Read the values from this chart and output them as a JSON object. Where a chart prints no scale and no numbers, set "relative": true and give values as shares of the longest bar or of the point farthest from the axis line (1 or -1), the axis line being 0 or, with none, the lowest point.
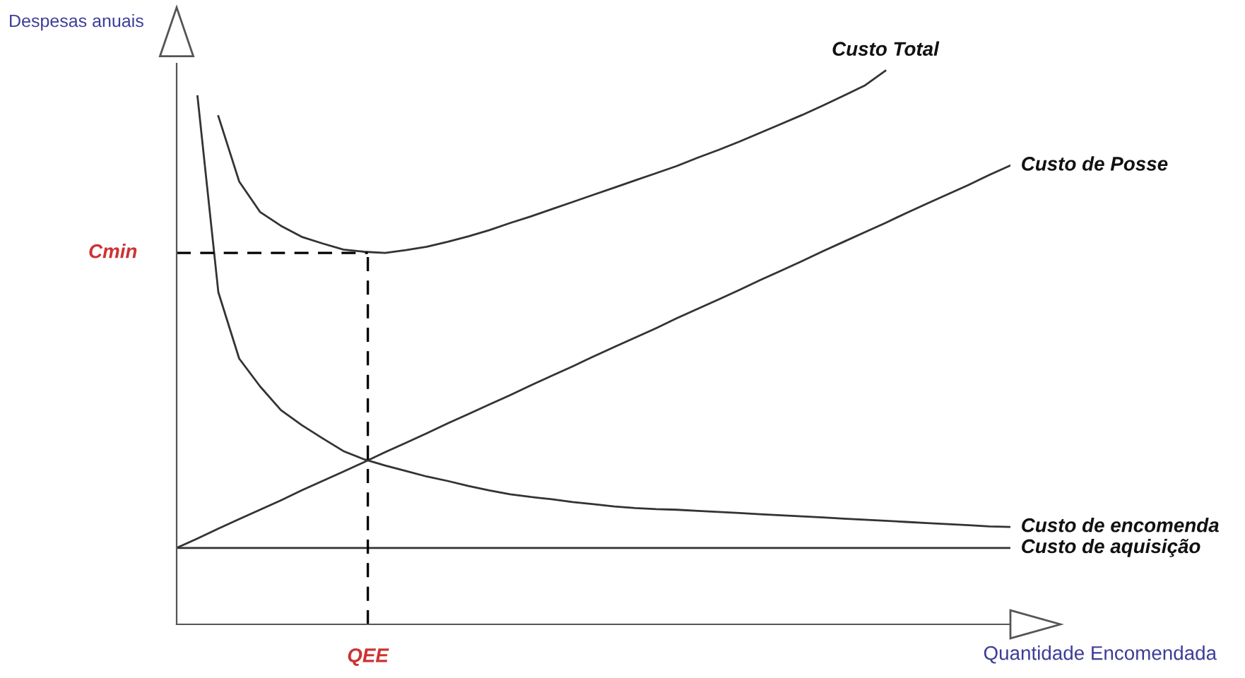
{
  "chart_data": {
    "type": "line",
    "relative": true,
    "xlabel": "Quantidade Encomendada",
    "ylabel": "Despesas anuais",
    "categories": [
      null,
      null,
      null,
      null,
      null,
      null,
      null,
      null,
      null,
      null,
      null,
      null,
      null,
      null,
      null,
      null,
      null,
      null,
      null,
      null,
      null,
      null,
      null,
      null,
      null,
      null,
      null,
      null,
      null,
      null,
      null,
      null,
      null,
      null,
      null,
      null,
      null,
      null,
      null,
      null,
      null
    ],
    "series": [
      {
        "name": "Custo Total",
        "color": "#333333",
        "values": [
          null,
          null,
          0.918,
          0.8,
          0.745,
          0.72,
          0.7,
          0.688,
          0.677,
          0.673,
          0.671,
          0.676,
          0.682,
          0.691,
          0.701,
          0.712,
          0.725,
          0.737,
          0.75,
          0.763,
          0.776,
          0.789,
          0.802,
          0.815,
          0.828,
          0.843,
          0.857,
          0.872,
          0.888,
          0.904,
          0.92,
          0.937,
          0.955,
          0.973,
          1.0,
          null,
          null,
          null,
          null,
          null,
          null
        ]
      },
      {
        "name": "Custo de Posse",
        "color": "#333333",
        "values": [
          0.138,
          0.155,
          0.173,
          0.19,
          0.207,
          0.224,
          0.242,
          0.259,
          0.276,
          0.293,
          0.311,
          0.328,
          0.345,
          0.363,
          0.38,
          0.397,
          0.414,
          0.432,
          0.449,
          0.466,
          0.484,
          0.501,
          0.518,
          0.535,
          0.553,
          0.57,
          0.587,
          0.604,
          0.622,
          0.639,
          0.656,
          0.674,
          0.691,
          0.708,
          0.725,
          0.743,
          0.76,
          0.777,
          0.794,
          0.812,
          0.829
        ]
      },
      {
        "name": "Custo de encomenda",
        "color": "#333333",
        "values": [
          null,
          0.954,
          0.6,
          0.48,
          0.43,
          0.387,
          0.36,
          0.336,
          0.313,
          0.298,
          0.287,
          0.277,
          0.267,
          0.259,
          0.25,
          0.242,
          0.235,
          0.23,
          0.226,
          0.221,
          0.217,
          0.213,
          0.21,
          0.208,
          0.207,
          0.205,
          0.203,
          0.201,
          0.199,
          0.197,
          0.195,
          0.193,
          0.191,
          0.189,
          0.187,
          0.185,
          0.183,
          0.181,
          0.179,
          0.177,
          0.176
        ]
      },
      {
        "name": "Custo de aquisição",
        "color": "#333333",
        "values": [
          0.138,
          0.138,
          0.138,
          0.138,
          0.138,
          0.138,
          0.138,
          0.138,
          0.138,
          0.138,
          0.138,
          0.138,
          0.138,
          0.138,
          0.138,
          0.138,
          0.138,
          0.138,
          0.138,
          0.138,
          0.138,
          0.138,
          0.138,
          0.138,
          0.138,
          0.138,
          0.138,
          0.138,
          0.138,
          0.138,
          0.138,
          0.138,
          0.138,
          0.138,
          0.138,
          0.138,
          0.138,
          0.138,
          0.138,
          0.138,
          0.138
        ]
      }
    ],
    "ref_lines": [
      {
        "axis": "y",
        "value": 0.671,
        "label": "Cmin",
        "color": "#000000",
        "line_style": "dashed"
      }
    ],
    "annotations": [
      "QEE"
    ]
  }
}
